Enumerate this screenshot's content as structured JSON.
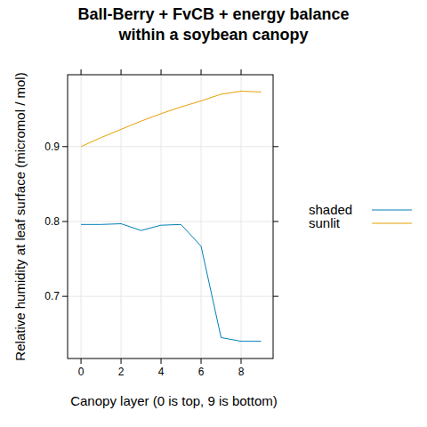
{
  "chart_data": {
    "type": "line",
    "title": [
      "Ball-Berry + FvCB + energy balance",
      "within a soybean canopy"
    ],
    "x_label": "Canopy layer (0 is top, 9 is bottom)",
    "y_label": "Relative humidity at leaf surface (micromol / mol)",
    "x": [
      0,
      1,
      2,
      3,
      4,
      5,
      6,
      7,
      8,
      9
    ],
    "series": [
      {
        "name": "shaded",
        "color": "#0080b8",
        "values": [
          0.796,
          0.796,
          0.797,
          0.788,
          0.795,
          0.796,
          0.767,
          0.645,
          0.64,
          0.64
        ]
      },
      {
        "name": "sunlit",
        "color": "#e69f00",
        "values": [
          0.9,
          0.912,
          0.923,
          0.934,
          0.944,
          0.953,
          0.961,
          0.97,
          0.974,
          0.973
        ]
      }
    ],
    "xlim": [
      -0.67,
      9.6
    ],
    "ylim": [
      0.617,
      0.996
    ],
    "xticks": [
      0,
      2,
      4,
      6,
      8
    ],
    "yticks": [
      0.7,
      0.8,
      0.9
    ],
    "grid": true,
    "legend": "right"
  }
}
